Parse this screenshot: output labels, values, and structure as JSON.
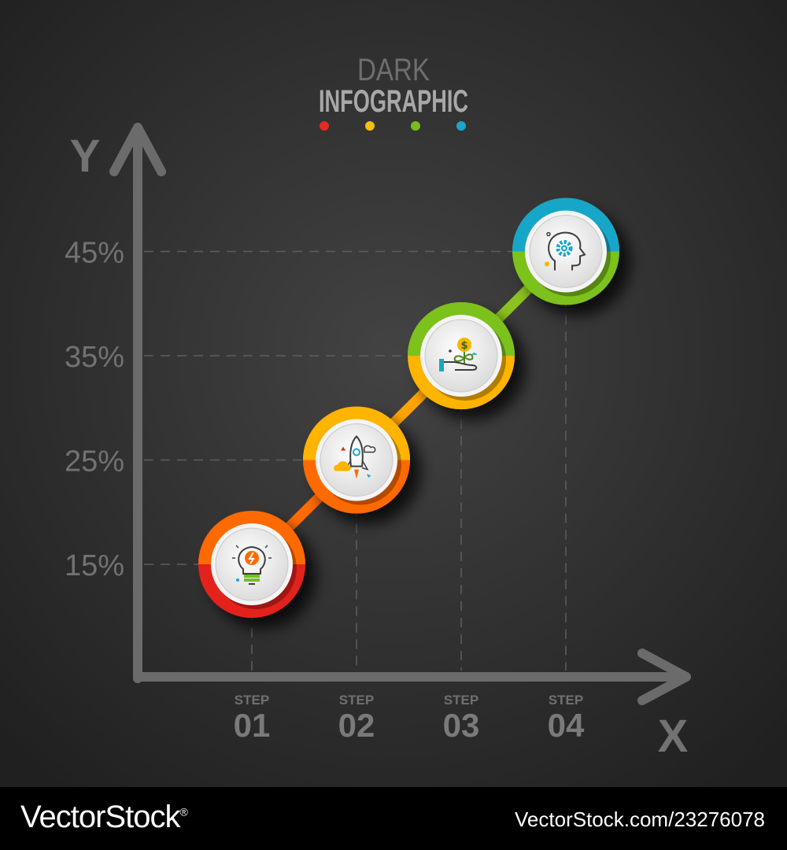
{
  "title_line1": "DARK",
  "title_line2": "INFOGRAPHIC",
  "palette": [
    "#e52a22",
    "#f7bd10",
    "#78bd20",
    "#19a6c8"
  ],
  "chart_data": {
    "type": "line",
    "title": "DARK INFOGRAPHIC",
    "xlabel": "X",
    "ylabel": "Y",
    "ylim": [
      5,
      50
    ],
    "yticks": [
      "15%",
      "25%",
      "35%",
      "45%"
    ],
    "ytick_values": [
      15,
      25,
      35,
      45
    ],
    "categories": [
      {
        "top": "STEP",
        "num": "01"
      },
      {
        "top": "STEP",
        "num": "02"
      },
      {
        "top": "STEP",
        "num": "03"
      },
      {
        "top": "STEP",
        "num": "04"
      }
    ],
    "values": [
      15,
      25,
      35,
      45
    ],
    "grid": true,
    "legend": "none",
    "markers": [
      {
        "icon": "lightbulb-icon",
        "colors": [
          "#e3231f",
          "#ff6a00"
        ]
      },
      {
        "icon": "rocket-icon",
        "colors": [
          "#ff6a00",
          "#ffb400"
        ]
      },
      {
        "icon": "money-plant-icon",
        "colors": [
          "#ffb400",
          "#7cc11b"
        ]
      },
      {
        "icon": "head-gear-icon",
        "colors": [
          "#7cc11b",
          "#19a6c8"
        ]
      }
    ],
    "line_colors": [
      "#ff6a00",
      "#ffa300",
      "#8cc21e"
    ]
  },
  "footer": {
    "brand": "VectorStock",
    "brand_mark": "®",
    "image_id": "VectorStock.com/23276078"
  }
}
